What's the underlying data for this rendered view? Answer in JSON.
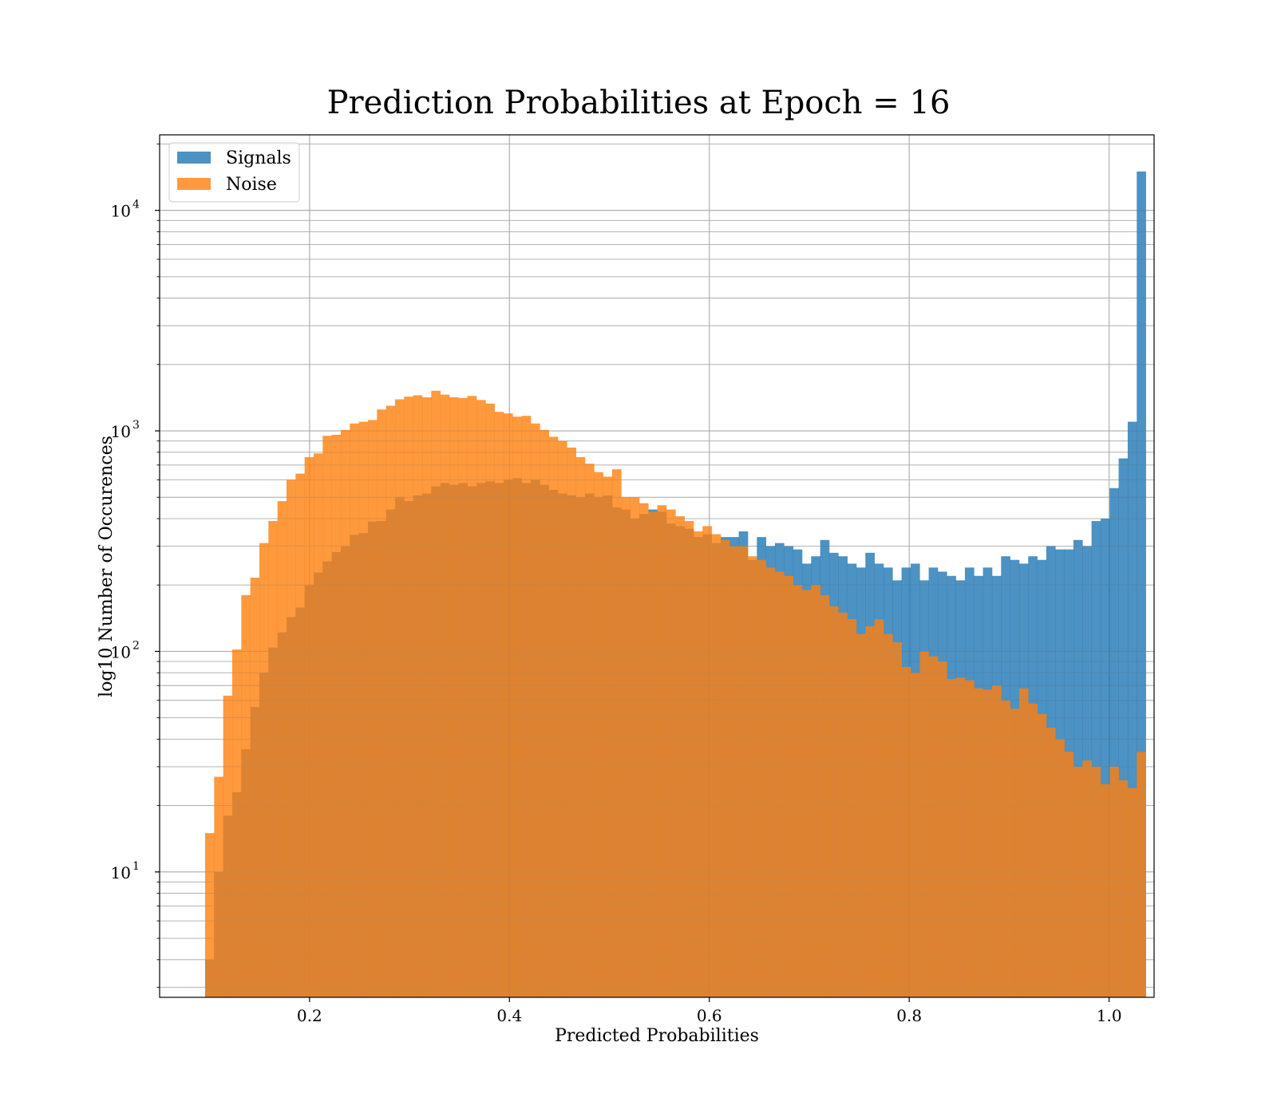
{
  "chart_data": {
    "type": "bar",
    "subtype": "overlaid-histogram",
    "title": "Prediction Probabilities at Epoch = 16",
    "xlabel": "Predicted Probabilities",
    "ylabel": "log10 Number of Occurences",
    "xlim": [
      0.05,
      1.045
    ],
    "ylim": [
      2.7,
      22000
    ],
    "yscale": "log",
    "grid": true,
    "legend_position": "top-left",
    "x_ticks": [
      0.2,
      0.4,
      0.6,
      0.8,
      1.0
    ],
    "x_tick_labels": [
      "0.2",
      "0.4",
      "0.6",
      "0.8",
      "1.0"
    ],
    "y_ticks": [
      10,
      100,
      1000,
      10000
    ],
    "y_tick_labels": [
      {
        "base": "10",
        "exp": "1"
      },
      {
        "base": "10",
        "exp": "2"
      },
      {
        "base": "10",
        "exp": "3"
      },
      {
        "base": "10",
        "exp": "4"
      }
    ],
    "bin_start": 0.0955,
    "bin_width": 0.00905,
    "series": [
      {
        "name": "Signals",
        "color": "#1f77b4",
        "opacity": 0.8,
        "values": [
          4,
          10,
          18,
          23,
          36,
          56,
          80,
          104,
          122,
          143,
          158,
          200,
          228,
          256,
          282,
          300,
          338,
          344,
          388,
          390,
          440,
          500,
          480,
          510,
          520,
          560,
          580,
          570,
          580,
          560,
          580,
          590,
          580,
          600,
          610,
          580,
          600,
          570,
          540,
          520,
          510,
          500,
          520,
          500,
          510,
          450,
          440,
          400,
          420,
          440,
          430,
          380,
          370,
          360,
          330,
          340,
          310,
          330,
          330,
          350,
          260,
          330,
          300,
          310,
          300,
          290,
          250,
          270,
          320,
          280,
          270,
          250,
          240,
          280,
          250,
          240,
          210,
          240,
          250,
          210,
          240,
          230,
          220,
          210,
          240,
          220,
          240,
          220,
          270,
          260,
          250,
          270,
          260,
          300,
          290,
          290,
          320,
          300,
          390,
          400,
          550,
          750,
          1100,
          15000
        ]
      },
      {
        "name": "Noise",
        "color": "#ff7f0e",
        "opacity": 0.8,
        "values": [
          15,
          27,
          63,
          102,
          180,
          216,
          310,
          390,
          480,
          600,
          640,
          760,
          790,
          950,
          960,
          1010,
          1080,
          1100,
          1120,
          1250,
          1300,
          1390,
          1430,
          1450,
          1420,
          1520,
          1460,
          1420,
          1410,
          1440,
          1380,
          1330,
          1220,
          1200,
          1160,
          1170,
          1080,
          1010,
          940,
          900,
          840,
          760,
          710,
          650,
          620,
          670,
          500,
          500,
          470,
          430,
          460,
          440,
          410,
          390,
          350,
          370,
          340,
          320,
          300,
          300,
          270,
          260,
          240,
          230,
          220,
          200,
          190,
          200,
          180,
          160,
          150,
          140,
          120,
          130,
          140,
          120,
          110,
          85,
          80,
          100,
          95,
          90,
          75,
          76,
          74,
          68,
          67,
          70,
          60,
          55,
          68,
          58,
          52,
          45,
          40,
          35,
          30,
          32,
          30,
          25,
          30,
          26,
          24,
          35
        ]
      }
    ]
  }
}
